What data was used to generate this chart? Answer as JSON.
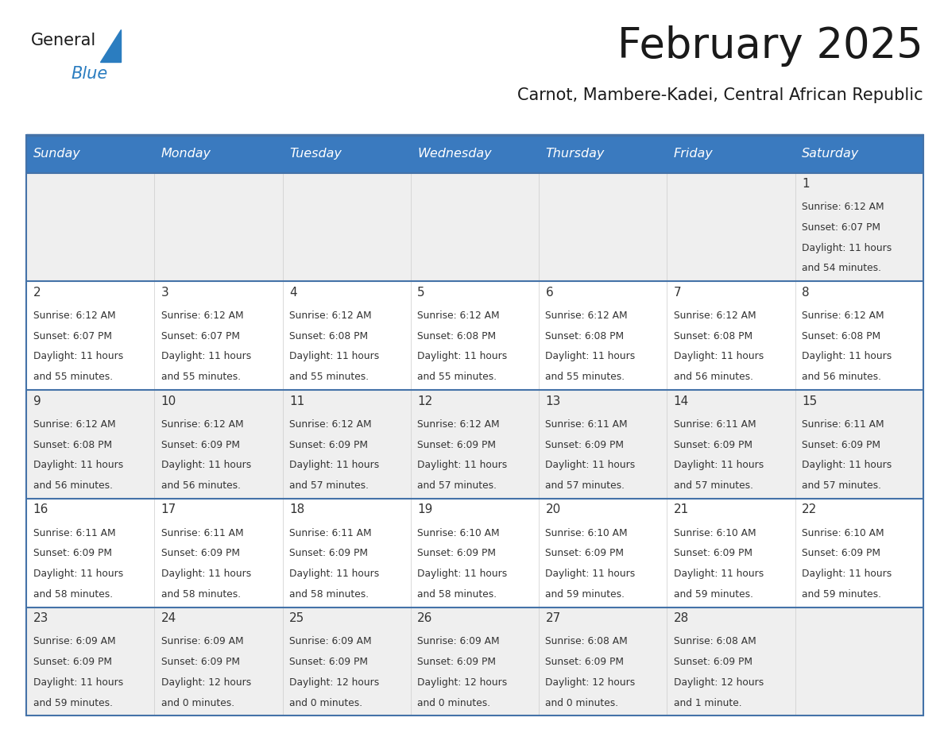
{
  "title": "February 2025",
  "subtitle": "Carnot, Mambere-Kadei, Central African Republic",
  "header_color": "#3a7abf",
  "header_text_color": "#ffffff",
  "row_bg_odd": "#efefef",
  "row_bg_even": "#ffffff",
  "border_color": "#4472a8",
  "day_number_color": "#333333",
  "info_text_color": "#333333",
  "days_of_week": [
    "Sunday",
    "Monday",
    "Tuesday",
    "Wednesday",
    "Thursday",
    "Friday",
    "Saturday"
  ],
  "weeks": [
    [
      {
        "day": null,
        "info": null
      },
      {
        "day": null,
        "info": null
      },
      {
        "day": null,
        "info": null
      },
      {
        "day": null,
        "info": null
      },
      {
        "day": null,
        "info": null
      },
      {
        "day": null,
        "info": null
      },
      {
        "day": 1,
        "info": "Sunrise: 6:12 AM\nSunset: 6:07 PM\nDaylight: 11 hours\nand 54 minutes."
      }
    ],
    [
      {
        "day": 2,
        "info": "Sunrise: 6:12 AM\nSunset: 6:07 PM\nDaylight: 11 hours\nand 55 minutes."
      },
      {
        "day": 3,
        "info": "Sunrise: 6:12 AM\nSunset: 6:07 PM\nDaylight: 11 hours\nand 55 minutes."
      },
      {
        "day": 4,
        "info": "Sunrise: 6:12 AM\nSunset: 6:08 PM\nDaylight: 11 hours\nand 55 minutes."
      },
      {
        "day": 5,
        "info": "Sunrise: 6:12 AM\nSunset: 6:08 PM\nDaylight: 11 hours\nand 55 minutes."
      },
      {
        "day": 6,
        "info": "Sunrise: 6:12 AM\nSunset: 6:08 PM\nDaylight: 11 hours\nand 55 minutes."
      },
      {
        "day": 7,
        "info": "Sunrise: 6:12 AM\nSunset: 6:08 PM\nDaylight: 11 hours\nand 56 minutes."
      },
      {
        "day": 8,
        "info": "Sunrise: 6:12 AM\nSunset: 6:08 PM\nDaylight: 11 hours\nand 56 minutes."
      }
    ],
    [
      {
        "day": 9,
        "info": "Sunrise: 6:12 AM\nSunset: 6:08 PM\nDaylight: 11 hours\nand 56 minutes."
      },
      {
        "day": 10,
        "info": "Sunrise: 6:12 AM\nSunset: 6:09 PM\nDaylight: 11 hours\nand 56 minutes."
      },
      {
        "day": 11,
        "info": "Sunrise: 6:12 AM\nSunset: 6:09 PM\nDaylight: 11 hours\nand 57 minutes."
      },
      {
        "day": 12,
        "info": "Sunrise: 6:12 AM\nSunset: 6:09 PM\nDaylight: 11 hours\nand 57 minutes."
      },
      {
        "day": 13,
        "info": "Sunrise: 6:11 AM\nSunset: 6:09 PM\nDaylight: 11 hours\nand 57 minutes."
      },
      {
        "day": 14,
        "info": "Sunrise: 6:11 AM\nSunset: 6:09 PM\nDaylight: 11 hours\nand 57 minutes."
      },
      {
        "day": 15,
        "info": "Sunrise: 6:11 AM\nSunset: 6:09 PM\nDaylight: 11 hours\nand 57 minutes."
      }
    ],
    [
      {
        "day": 16,
        "info": "Sunrise: 6:11 AM\nSunset: 6:09 PM\nDaylight: 11 hours\nand 58 minutes."
      },
      {
        "day": 17,
        "info": "Sunrise: 6:11 AM\nSunset: 6:09 PM\nDaylight: 11 hours\nand 58 minutes."
      },
      {
        "day": 18,
        "info": "Sunrise: 6:11 AM\nSunset: 6:09 PM\nDaylight: 11 hours\nand 58 minutes."
      },
      {
        "day": 19,
        "info": "Sunrise: 6:10 AM\nSunset: 6:09 PM\nDaylight: 11 hours\nand 58 minutes."
      },
      {
        "day": 20,
        "info": "Sunrise: 6:10 AM\nSunset: 6:09 PM\nDaylight: 11 hours\nand 59 minutes."
      },
      {
        "day": 21,
        "info": "Sunrise: 6:10 AM\nSunset: 6:09 PM\nDaylight: 11 hours\nand 59 minutes."
      },
      {
        "day": 22,
        "info": "Sunrise: 6:10 AM\nSunset: 6:09 PM\nDaylight: 11 hours\nand 59 minutes."
      }
    ],
    [
      {
        "day": 23,
        "info": "Sunrise: 6:09 AM\nSunset: 6:09 PM\nDaylight: 11 hours\nand 59 minutes."
      },
      {
        "day": 24,
        "info": "Sunrise: 6:09 AM\nSunset: 6:09 PM\nDaylight: 12 hours\nand 0 minutes."
      },
      {
        "day": 25,
        "info": "Sunrise: 6:09 AM\nSunset: 6:09 PM\nDaylight: 12 hours\nand 0 minutes."
      },
      {
        "day": 26,
        "info": "Sunrise: 6:09 AM\nSunset: 6:09 PM\nDaylight: 12 hours\nand 0 minutes."
      },
      {
        "day": 27,
        "info": "Sunrise: 6:08 AM\nSunset: 6:09 PM\nDaylight: 12 hours\nand 0 minutes."
      },
      {
        "day": 28,
        "info": "Sunrise: 6:08 AM\nSunset: 6:09 PM\nDaylight: 12 hours\nand 1 minute."
      },
      {
        "day": null,
        "info": null
      }
    ]
  ],
  "logo_text_general": "General",
  "logo_text_blue": "Blue",
  "logo_color_general": "#1a1a1a",
  "logo_color_blue": "#2b7dc0",
  "logo_triangle_color": "#2b7dc0",
  "fig_width": 11.88,
  "fig_height": 9.18
}
